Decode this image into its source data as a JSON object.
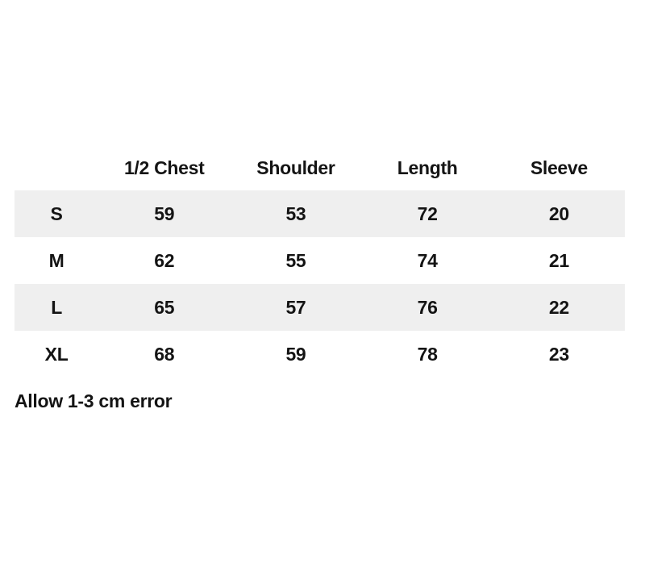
{
  "chart_data": {
    "type": "table",
    "title": "",
    "columns": [
      "1/2 Chest",
      "Shoulder",
      "Length",
      "Sleeve"
    ],
    "row_header_label": "",
    "rows": [
      {
        "size": "S",
        "values": [
          "59",
          "53",
          "72",
          "20"
        ]
      },
      {
        "size": "M",
        "values": [
          "62",
          "55",
          "74",
          "21"
        ]
      },
      {
        "size": "L",
        "values": [
          "65",
          "57",
          "76",
          "22"
        ]
      },
      {
        "size": "XL",
        "values": [
          "68",
          "59",
          "78",
          "23"
        ]
      }
    ],
    "note": "Allow 1-3 cm error",
    "layout": {
      "striped_rows": "odd rows (S, L) shaded",
      "grid": "off",
      "alignment": "center"
    }
  },
  "colors": {
    "background": "#ffffff",
    "row_alt_bg": "#efefef",
    "text": "#141414"
  }
}
